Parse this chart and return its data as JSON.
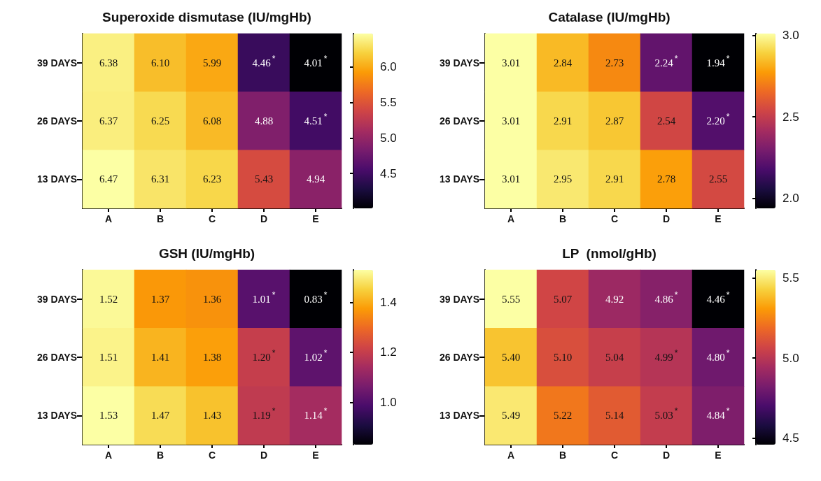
{
  "chart_data": [
    {
      "type": "heatmap",
      "title": "Superoxide dismutase (IU/mgHb)",
      "categories": [
        "A",
        "B",
        "C",
        "D",
        "E"
      ],
      "y_categories": [
        "39 DAYS",
        "26 DAYS",
        "13 DAYS"
      ],
      "cells": [
        [
          6.38,
          6.1,
          5.99,
          4.46,
          4.01
        ],
        [
          6.37,
          6.25,
          6.08,
          4.88,
          4.51
        ],
        [
          6.47,
          6.31,
          6.23,
          5.43,
          4.94
        ]
      ],
      "cell_labels": [
        [
          "6.38",
          "6.10",
          "5.99",
          "4.46$^{*}$",
          "4.01$^{*}$"
        ],
        [
          "6.37",
          "6.25",
          "6.08",
          "4.88",
          "4.51$^{*}$"
        ],
        [
          "6.47",
          "6.31",
          "6.23",
          "5.43",
          "4.94"
        ]
      ],
      "clim": [
        4.01,
        6.47
      ],
      "cticks": [
        4.5,
        {
          "value": 5,
          "label": "5.0"
        },
        5.5,
        {
          "value": 6,
          "label": "6.0"
        }
      ]
    },
    {
      "type": "heatmap",
      "title": "Catalase (IU/mgHb)",
      "categories": [
        "A",
        "B",
        "C",
        "D",
        "E"
      ],
      "y_categories": [
        "39 DAYS",
        "26 DAYS",
        "13 DAYS"
      ],
      "cells": [
        [
          3.01,
          2.84,
          2.73,
          2.24,
          1.94
        ],
        [
          3.01,
          2.91,
          2.87,
          2.54,
          2.2
        ],
        [
          3.01,
          2.95,
          2.91,
          2.78,
          2.55
        ]
      ],
      "cell_labels": [
        [
          "3.01",
          "2.84",
          "2.73",
          "2.24$^{*}$",
          "1.94$^{*}$"
        ],
        [
          "3.01",
          "2.91",
          "2.87",
          "2.54",
          "2.20$^{*}$"
        ],
        [
          "3.01",
          "2.95",
          "2.91",
          "2.78",
          "2.55"
        ]
      ],
      "clim": [
        1.94,
        3.01
      ],
      "cticks": [
        {
          "value": 2,
          "label": "2.0"
        },
        2.5,
        {
          "value": 3,
          "label": "3.0"
        }
      ]
    },
    {
      "type": "heatmap",
      "title": "GSH (IU/mgHb)",
      "categories": [
        "A",
        "B",
        "C",
        "D",
        "E"
      ],
      "y_categories": [
        "39 DAYS",
        "26 DAYS",
        "13 DAYS"
      ],
      "cells": [
        [
          1.52,
          1.37,
          1.36,
          1.01,
          0.83
        ],
        [
          1.51,
          1.41,
          1.38,
          1.2,
          1.02
        ],
        [
          1.53,
          1.47,
          1.43,
          1.19,
          1.14
        ]
      ],
      "cell_labels": [
        [
          "1.52",
          "1.37",
          "1.36",
          "1.01$^{*}$",
          "0.83$^{*}$"
        ],
        [
          "1.51",
          "1.41",
          "1.38",
          "1.20$^{*}$",
          "1.02$^{*}$"
        ],
        [
          "1.53",
          "1.47",
          "1.43",
          "1.19$^{*}$",
          "1.14$^{*}$"
        ]
      ],
      "clim": [
        0.83,
        1.53
      ],
      "cticks": [
        {
          "value": 1,
          "label": "1.0"
        },
        1.2,
        1.4
      ]
    },
    {
      "type": "heatmap",
      "title": "LP  (nmol/gHb)",
      "categories": [
        "A",
        "B",
        "C",
        "D",
        "E"
      ],
      "y_categories": [
        "39 DAYS",
        "26 DAYS",
        "13 DAYS"
      ],
      "cells": [
        [
          5.55,
          5.07,
          4.92,
          4.86,
          4.46
        ],
        [
          5.4,
          5.1,
          5.04,
          4.99,
          4.8
        ],
        [
          5.49,
          5.22,
          5.14,
          5.03,
          4.84
        ]
      ],
      "cell_labels": [
        [
          "5.55",
          "5.07",
          "4.92",
          "4.86$^{*}$",
          "4.46$^{*}$"
        ],
        [
          "5.40",
          "5.10",
          "5.04",
          "4.99$^{*}$",
          "4.80$^{*}$"
        ],
        [
          "5.49",
          "5.22",
          "5.14",
          "5.03$^{*}$",
          "4.84$^{*}$"
        ]
      ],
      "clim": [
        4.46,
        5.55
      ],
      "cticks": [
        4.5,
        {
          "value": 5,
          "label": "5.0"
        },
        5.5
      ]
    }
  ]
}
